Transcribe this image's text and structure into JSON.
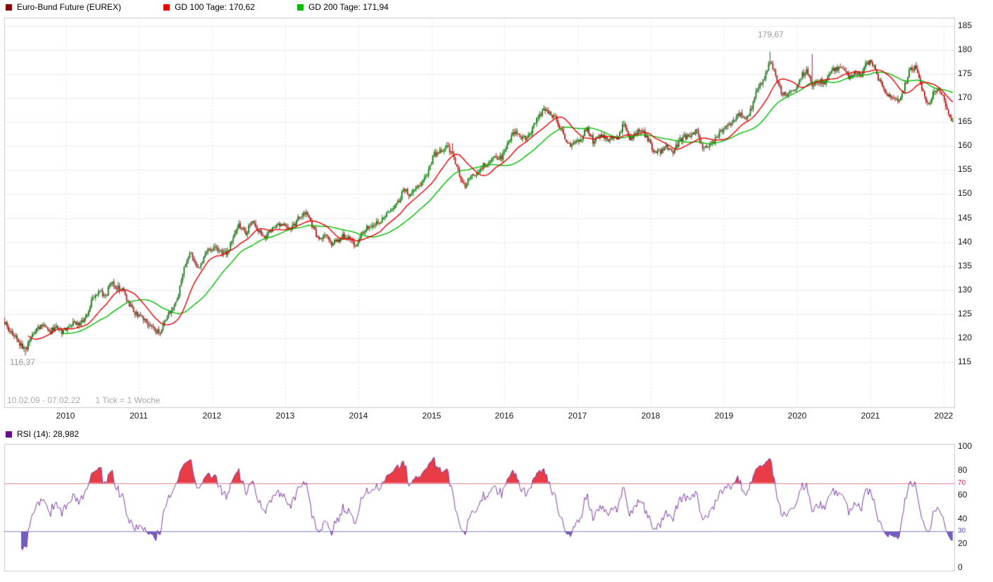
{
  "legend": {
    "instrument": {
      "label": "Euro-Bund Future (EUREX)",
      "swatch": "#8b0000"
    },
    "gd100": {
      "label": "GD 100 Tage: 170,62",
      "swatch": "#e60000"
    },
    "gd200": {
      "label": "GD 200 Tage: 171,94",
      "swatch": "#00bb00"
    }
  },
  "rsi_legend": {
    "label": "RSI (14): 28,982",
    "swatch": "#65108a"
  },
  "footer": {
    "range_label": "10.02.09 - 07.02.22",
    "tick_label": "1 Tick = 1 Woche"
  },
  "annotations": {
    "high": "179,67",
    "low": "116,37"
  },
  "chart_data": {
    "type": "candlestick",
    "title": "Euro-Bund Future (EUREX)",
    "interval": "1 Woche",
    "date_range": {
      "start": "10.02.09",
      "end": "07.02.22"
    },
    "price_axis": {
      "side": "right",
      "min": 105,
      "max": 187,
      "ticks": [
        185,
        180,
        175,
        170,
        165,
        160,
        155,
        150,
        145,
        140,
        135,
        130,
        125,
        120,
        115
      ]
    },
    "x_ticks": [
      2010,
      2011,
      2012,
      2013,
      2014,
      2015,
      2016,
      2017,
      2018,
      2019,
      2020,
      2021,
      2022
    ],
    "high": {
      "date": "2019-08",
      "value": 179.67
    },
    "low": {
      "date": "2009-06",
      "value": 116.37
    },
    "overlays": [
      {
        "name": "GD 100 Tage",
        "type": "sma",
        "window_weeks": 20,
        "last_value": 170.62,
        "color_key": "gd100"
      },
      {
        "name": "GD 200 Tage",
        "type": "sma",
        "window_weeks": 43,
        "last_value": 171.94,
        "color_key": "gd200"
      }
    ],
    "monthly_closes": [
      [
        "2009-02",
        124.6
      ],
      [
        "2009-03",
        122.0
      ],
      [
        "2009-04",
        120.6
      ],
      [
        "2009-05",
        118.8
      ],
      [
        "2009-06",
        117.4
      ],
      [
        "2009-07",
        120.8
      ],
      [
        "2009-08",
        122.2
      ],
      [
        "2009-09",
        122.6
      ],
      [
        "2009-10",
        121.2
      ],
      [
        "2009-11",
        122.8
      ],
      [
        "2009-12",
        121.0
      ],
      [
        "2010-01",
        122.6
      ],
      [
        "2010-02",
        123.2
      ],
      [
        "2010-03",
        123.0
      ],
      [
        "2010-04",
        124.6
      ],
      [
        "2010-05",
        128.6
      ],
      [
        "2010-06",
        129.8
      ],
      [
        "2010-07",
        128.4
      ],
      [
        "2010-08",
        131.8
      ],
      [
        "2010-09",
        130.6
      ],
      [
        "2010-10",
        129.8
      ],
      [
        "2010-11",
        127.0
      ],
      [
        "2010-12",
        125.2
      ],
      [
        "2011-01",
        124.0
      ],
      [
        "2011-02",
        123.2
      ],
      [
        "2011-03",
        122.0
      ],
      [
        "2011-04",
        120.8
      ],
      [
        "2011-05",
        124.4
      ],
      [
        "2011-06",
        125.6
      ],
      [
        "2011-07",
        129.0
      ],
      [
        "2011-08",
        134.6
      ],
      [
        "2011-09",
        137.6
      ],
      [
        "2011-10",
        134.6
      ],
      [
        "2011-11",
        136.0
      ],
      [
        "2011-12",
        138.6
      ],
      [
        "2012-01",
        138.6
      ],
      [
        "2012-02",
        137.8
      ],
      [
        "2012-03",
        137.4
      ],
      [
        "2012-04",
        140.8
      ],
      [
        "2012-05",
        143.8
      ],
      [
        "2012-06",
        141.6
      ],
      [
        "2012-07",
        144.4
      ],
      [
        "2012-08",
        142.8
      ],
      [
        "2012-09",
        141.0
      ],
      [
        "2012-10",
        142.0
      ],
      [
        "2012-11",
        143.2
      ],
      [
        "2012-12",
        144.0
      ],
      [
        "2013-01",
        142.4
      ],
      [
        "2013-02",
        143.8
      ],
      [
        "2013-03",
        145.4
      ],
      [
        "2013-04",
        146.4
      ],
      [
        "2013-05",
        143.2
      ],
      [
        "2013-06",
        140.6
      ],
      [
        "2013-07",
        141.8
      ],
      [
        "2013-08",
        139.8
      ],
      [
        "2013-09",
        140.0
      ],
      [
        "2013-10",
        141.4
      ],
      [
        "2013-11",
        140.8
      ],
      [
        "2013-12",
        139.4
      ],
      [
        "2014-01",
        141.8
      ],
      [
        "2014-02",
        143.0
      ],
      [
        "2014-03",
        143.4
      ],
      [
        "2014-04",
        144.2
      ],
      [
        "2014-05",
        145.8
      ],
      [
        "2014-06",
        146.8
      ],
      [
        "2014-07",
        148.4
      ],
      [
        "2014-08",
        150.8
      ],
      [
        "2014-09",
        150.0
      ],
      [
        "2014-10",
        151.4
      ],
      [
        "2014-11",
        152.6
      ],
      [
        "2014-12",
        154.8
      ],
      [
        "2015-01",
        158.4
      ],
      [
        "2015-02",
        158.8
      ],
      [
        "2015-03",
        159.8
      ],
      [
        "2015-04",
        158.2
      ],
      [
        "2015-05",
        154.2
      ],
      [
        "2015-06",
        151.2
      ],
      [
        "2015-07",
        154.2
      ],
      [
        "2015-08",
        153.8
      ],
      [
        "2015-09",
        156.0
      ],
      [
        "2015-10",
        156.4
      ],
      [
        "2015-11",
        157.8
      ],
      [
        "2015-12",
        157.6
      ],
      [
        "2016-01",
        160.8
      ],
      [
        "2016-02",
        163.0
      ],
      [
        "2016-03",
        162.0
      ],
      [
        "2016-04",
        161.6
      ],
      [
        "2016-05",
        163.4
      ],
      [
        "2016-06",
        166.0
      ],
      [
        "2016-07",
        167.4
      ],
      [
        "2016-08",
        166.8
      ],
      [
        "2016-09",
        165.4
      ],
      [
        "2016-10",
        163.0
      ],
      [
        "2016-11",
        160.2
      ],
      [
        "2016-12",
        160.6
      ],
      [
        "2017-01",
        161.0
      ],
      [
        "2017-02",
        164.0
      ],
      [
        "2017-03",
        161.0
      ],
      [
        "2017-04",
        162.2
      ],
      [
        "2017-05",
        161.6
      ],
      [
        "2017-06",
        161.4
      ],
      [
        "2017-07",
        161.8
      ],
      [
        "2017-08",
        164.4
      ],
      [
        "2017-09",
        161.2
      ],
      [
        "2017-10",
        162.8
      ],
      [
        "2017-11",
        163.2
      ],
      [
        "2017-12",
        161.6
      ],
      [
        "2018-01",
        159.0
      ],
      [
        "2018-02",
        158.6
      ],
      [
        "2018-03",
        159.8
      ],
      [
        "2018-04",
        158.4
      ],
      [
        "2018-05",
        160.8
      ],
      [
        "2018-06",
        162.0
      ],
      [
        "2018-07",
        161.8
      ],
      [
        "2018-08",
        163.4
      ],
      [
        "2018-09",
        159.4
      ],
      [
        "2018-10",
        160.4
      ],
      [
        "2018-11",
        161.2
      ],
      [
        "2018-12",
        163.4
      ],
      [
        "2019-01",
        164.0
      ],
      [
        "2019-02",
        165.4
      ],
      [
        "2019-03",
        166.8
      ],
      [
        "2019-04",
        165.6
      ],
      [
        "2019-05",
        167.8
      ],
      [
        "2019-06",
        172.0
      ],
      [
        "2019-07",
        173.4
      ],
      [
        "2019-08",
        178.2
      ],
      [
        "2019-09",
        174.2
      ],
      [
        "2019-10",
        170.8
      ],
      [
        "2019-11",
        171.0
      ],
      [
        "2019-12",
        171.4
      ],
      [
        "2020-01",
        174.4
      ],
      [
        "2020-02",
        175.8
      ],
      [
        "2020-03",
        172.8
      ],
      [
        "2020-04",
        173.6
      ],
      [
        "2020-05",
        173.2
      ],
      [
        "2020-06",
        175.4
      ],
      [
        "2020-07",
        176.4
      ],
      [
        "2020-08",
        175.8
      ],
      [
        "2020-09",
        174.4
      ],
      [
        "2020-10",
        175.6
      ],
      [
        "2020-11",
        175.0
      ],
      [
        "2020-12",
        177.6
      ],
      [
        "2021-01",
        177.0
      ],
      [
        "2021-02",
        173.4
      ],
      [
        "2021-03",
        171.2
      ],
      [
        "2021-04",
        170.4
      ],
      [
        "2021-05",
        169.2
      ],
      [
        "2021-06",
        172.0
      ],
      [
        "2021-07",
        176.0
      ],
      [
        "2021-08",
        176.4
      ],
      [
        "2021-09",
        171.4
      ],
      [
        "2021-10",
        168.4
      ],
      [
        "2021-11",
        171.4
      ],
      [
        "2021-12",
        171.6
      ],
      [
        "2022-01",
        167.4
      ],
      [
        "2022-02",
        165.2
      ]
    ],
    "forced_extremes": [
      {
        "date": "2009-06",
        "type": "low",
        "value": 116.37
      },
      {
        "date": "2015-04",
        "type": "high",
        "value": 160.6
      },
      {
        "date": "2016-07",
        "type": "high",
        "value": 168.5
      },
      {
        "date": "2019-08",
        "type": "high",
        "value": 179.67
      },
      {
        "date": "2020-03",
        "type": "high",
        "value": 179.2
      }
    ],
    "rsi": {
      "period": 14,
      "last": 28.982,
      "overbought": 70,
      "oversold": 30,
      "axis_ticks": [
        100,
        80,
        70,
        60,
        40,
        30,
        20,
        0
      ]
    },
    "colors": {
      "up": "#147a14",
      "down": "#b22222",
      "gd100": "#e60000",
      "gd200": "#00bb00",
      "grid": "#ececec",
      "grid_vertical": "#e2e2e2",
      "frame": "#cccccc",
      "axis_text": "#1a1a1a",
      "rsi_line": "#8040a8",
      "rsi_overbought_fill": "#e83c47",
      "rsi_oversold_fill": "#6f5fc0",
      "level70": "#e2808c",
      "level30": "#8585c8",
      "label70": "#cc3344",
      "label30": "#5555bb"
    }
  }
}
